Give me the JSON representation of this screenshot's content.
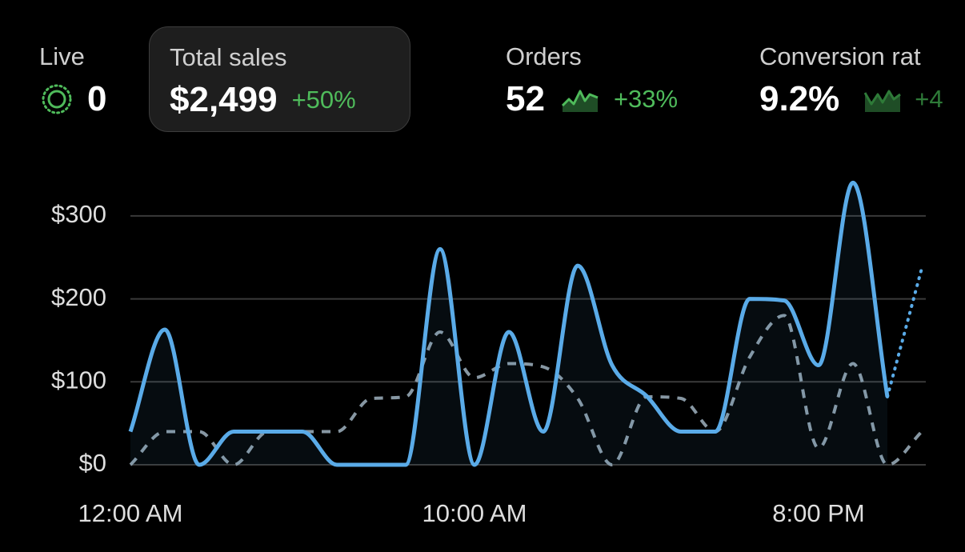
{
  "metrics": [
    {
      "label": "Live",
      "value": "0"
    },
    {
      "label": "Total sales",
      "value": "$2,499",
      "change": "+50%"
    },
    {
      "label": "Orders",
      "value": "52",
      "change": "+33%"
    },
    {
      "label": "Conversion rat",
      "value": "9.2%",
      "change": "+4"
    }
  ],
  "chart_data": {
    "type": "line",
    "categories": [
      "12:00 AM",
      null,
      null,
      null,
      null,
      null,
      null,
      null,
      null,
      null,
      "10:00 AM",
      null,
      null,
      null,
      null,
      null,
      null,
      null,
      null,
      null,
      "8:00 PM",
      null,
      null,
      null
    ],
    "series": [
      {
        "color": "#5aabe8",
        "values": [
          40,
          163,
          0,
          40,
          40,
          40,
          0,
          0,
          0,
          260,
          0,
          160,
          40,
          240,
          120,
          83,
          40,
          40,
          200,
          198,
          120,
          340,
          82,
          237
        ]
      },
      {
        "color": "#8797a3",
        "values": [
          0,
          40,
          40,
          0,
          40,
          40,
          40,
          80,
          82,
          160,
          105,
          122,
          118,
          80,
          0,
          82,
          80,
          40,
          130,
          180,
          20,
          122,
          0,
          40
        ]
      }
    ],
    "ylim": [
      0,
      350
    ],
    "yticks": [
      {
        "value": 0,
        "label": "$0"
      },
      {
        "value": 100,
        "label": "$100"
      },
      {
        "value": 200,
        "label": "$200"
      },
      {
        "value": 300,
        "label": "$300"
      }
    ],
    "grid": true
  }
}
